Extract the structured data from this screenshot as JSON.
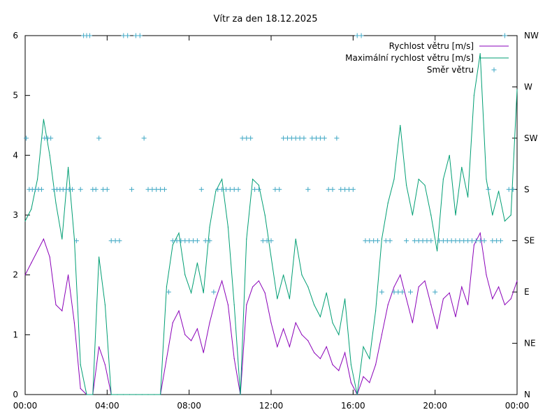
{
  "chart_data": {
    "type": "line",
    "title": "Vítr za den 18.12.2025",
    "x_ticks": [
      {
        "label": "00:00",
        "hour": 0
      },
      {
        "label": "04:00",
        "hour": 4
      },
      {
        "label": "08:00",
        "hour": 8
      },
      {
        "label": "12:00",
        "hour": 12
      },
      {
        "label": "16:00",
        "hour": 16
      },
      {
        "label": "20:00",
        "hour": 20
      },
      {
        "label": "00:00",
        "hour": 24
      }
    ],
    "xlim": [
      0,
      24
    ],
    "ylim": [
      0,
      6
    ],
    "y_ticks": [
      "0",
      "1",
      "2",
      "3",
      "4",
      "5",
      "6"
    ],
    "y2_ticks": [
      "N",
      "NE",
      "E",
      "SE",
      "S",
      "SW",
      "W",
      "NW"
    ],
    "y2lim": [
      0,
      7
    ],
    "legend_position": "top-right",
    "series": [
      {
        "name": "Rychlost větru [m/s]",
        "color": "#8a00b8",
        "style": "line",
        "x": [
          0,
          0.3,
          0.6,
          0.9,
          1.2,
          1.5,
          1.8,
          2.1,
          2.4,
          2.7,
          3.0,
          3.3,
          3.6,
          3.9,
          4.2,
          4.5,
          4.8,
          5.1,
          5.4,
          5.7,
          6.0,
          6.3,
          6.6,
          6.9,
          7.2,
          7.5,
          7.8,
          8.1,
          8.4,
          8.7,
          9.0,
          9.3,
          9.6,
          9.9,
          10.2,
          10.5,
          10.8,
          11.1,
          11.4,
          11.7,
          12.0,
          12.3,
          12.6,
          12.9,
          13.2,
          13.5,
          13.8,
          14.1,
          14.4,
          14.7,
          15.0,
          15.3,
          15.6,
          15.9,
          16.2,
          16.5,
          16.8,
          17.1,
          17.4,
          17.7,
          18.0,
          18.3,
          18.6,
          18.9,
          19.2,
          19.5,
          19.8,
          20.1,
          20.4,
          20.7,
          21.0,
          21.3,
          21.6,
          21.9,
          22.2,
          22.5,
          22.8,
          23.1,
          23.4,
          23.7,
          24.0
        ],
        "values": [
          2.0,
          2.2,
          2.4,
          2.6,
          2.3,
          1.5,
          1.4,
          2.0,
          1.2,
          0.1,
          0.0,
          0.0,
          0.8,
          0.5,
          0.0,
          0.0,
          0.0,
          0.0,
          0.0,
          0.0,
          0.0,
          0.0,
          0.0,
          0.6,
          1.2,
          1.4,
          1.0,
          0.9,
          1.1,
          0.7,
          1.2,
          1.6,
          1.9,
          1.5,
          0.6,
          0.0,
          1.5,
          1.8,
          1.9,
          1.7,
          1.2,
          0.8,
          1.1,
          0.8,
          1.2,
          1.0,
          0.9,
          0.7,
          0.6,
          0.8,
          0.5,
          0.4,
          0.7,
          0.2,
          0.0,
          0.3,
          0.2,
          0.5,
          1.0,
          1.5,
          1.8,
          2.0,
          1.6,
          1.2,
          1.8,
          1.9,
          1.5,
          1.1,
          1.6,
          1.7,
          1.3,
          1.8,
          1.5,
          2.5,
          2.7,
          2.0,
          1.6,
          1.8,
          1.5,
          1.6,
          1.9
        ]
      },
      {
        "name": "Maximální rychlost větru [m/s]",
        "color": "#009e73",
        "style": "line",
        "x": [
          0,
          0.3,
          0.6,
          0.9,
          1.2,
          1.5,
          1.8,
          2.1,
          2.4,
          2.7,
          3.0,
          3.3,
          3.6,
          3.9,
          4.2,
          4.5,
          4.8,
          5.1,
          5.4,
          5.7,
          6.0,
          6.3,
          6.6,
          6.9,
          7.2,
          7.5,
          7.8,
          8.1,
          8.4,
          8.7,
          9.0,
          9.3,
          9.6,
          9.9,
          10.2,
          10.5,
          10.8,
          11.1,
          11.4,
          11.7,
          12.0,
          12.3,
          12.6,
          12.9,
          13.2,
          13.5,
          13.8,
          14.1,
          14.4,
          14.7,
          15.0,
          15.3,
          15.6,
          15.9,
          16.2,
          16.5,
          16.8,
          17.1,
          17.4,
          17.7,
          18.0,
          18.3,
          18.6,
          18.9,
          19.2,
          19.5,
          19.8,
          20.1,
          20.4,
          20.7,
          21.0,
          21.3,
          21.6,
          21.9,
          22.2,
          22.5,
          22.8,
          23.1,
          23.4,
          23.7,
          24.0
        ],
        "values": [
          2.9,
          3.1,
          3.6,
          4.6,
          4.0,
          3.2,
          2.6,
          3.8,
          2.6,
          0.5,
          0.0,
          0.0,
          2.3,
          1.5,
          0.0,
          0.0,
          0.0,
          0.0,
          0.0,
          0.0,
          0.0,
          0.0,
          0.0,
          1.8,
          2.5,
          2.7,
          2.0,
          1.7,
          2.2,
          1.7,
          2.8,
          3.4,
          3.6,
          2.8,
          1.5,
          0.0,
          2.6,
          3.6,
          3.5,
          3.0,
          2.3,
          1.6,
          2.0,
          1.6,
          2.6,
          2.0,
          1.8,
          1.5,
          1.3,
          1.7,
          1.2,
          1.0,
          1.6,
          0.5,
          0.0,
          0.8,
          0.6,
          1.4,
          2.6,
          3.2,
          3.6,
          4.5,
          3.5,
          3.0,
          3.6,
          3.5,
          3.0,
          2.4,
          3.6,
          4.0,
          3.0,
          3.8,
          3.3,
          5.0,
          5.7,
          3.6,
          3.0,
          3.4,
          2.9,
          3.0,
          5.1
        ]
      },
      {
        "name": "Směr větru",
        "color": "#3fa7c4",
        "style": "points",
        "axis": "y2",
        "note": "direction index on y2: 0=N,1=NE,2=E,3=SE,4=S,5=SW,6=W,7=NW",
        "x": [
          0.05,
          0.2,
          0.35,
          0.5,
          0.65,
          0.8,
          0.95,
          1.1,
          1.25,
          1.4,
          1.55,
          1.7,
          1.85,
          2.0,
          2.15,
          2.3,
          2.5,
          2.7,
          2.85,
          3.0,
          3.15,
          3.3,
          3.45,
          3.6,
          3.8,
          4.0,
          4.2,
          4.4,
          4.6,
          4.8,
          5.0,
          5.2,
          5.4,
          5.6,
          5.8,
          6.0,
          6.2,
          6.4,
          6.6,
          6.8,
          7.0,
          7.2,
          7.4,
          7.6,
          7.8,
          8.0,
          8.2,
          8.4,
          8.6,
          8.8,
          9.0,
          9.2,
          9.4,
          9.6,
          9.8,
          10.0,
          10.2,
          10.4,
          10.6,
          10.8,
          11.0,
          11.2,
          11.4,
          11.6,
          11.8,
          12.0,
          12.2,
          12.4,
          12.6,
          12.8,
          13.0,
          13.2,
          13.4,
          13.6,
          13.8,
          14.0,
          14.2,
          14.4,
          14.6,
          14.8,
          15.0,
          15.2,
          15.4,
          15.6,
          15.8,
          16.0,
          16.2,
          16.4,
          16.6,
          16.8,
          17.0,
          17.2,
          17.4,
          17.6,
          17.8,
          18.0,
          18.2,
          18.4,
          18.6,
          18.8,
          19.0,
          19.2,
          19.4,
          19.6,
          19.8,
          20.0,
          20.2,
          20.4,
          20.6,
          20.8,
          21.0,
          21.2,
          21.4,
          21.6,
          21.8,
          22.0,
          22.2,
          22.4,
          22.6,
          22.8,
          23.0,
          23.2,
          23.4,
          23.6,
          23.8
        ],
        "values": [
          5,
          4,
          4,
          4,
          4,
          4,
          5,
          5,
          5,
          4,
          4,
          4,
          4,
          4,
          4,
          4,
          3,
          4,
          7,
          7,
          7,
          4,
          4,
          5,
          4,
          4,
          3,
          3,
          3,
          7,
          7,
          4,
          7,
          7,
          5,
          4,
          4,
          4,
          4,
          4,
          2,
          3,
          3,
          3,
          3,
          3,
          3,
          3,
          4,
          3,
          3,
          2,
          4,
          4,
          4,
          4,
          4,
          4,
          5,
          5,
          5,
          4,
          4,
          3,
          3,
          3,
          4,
          4,
          5,
          5,
          5,
          5,
          5,
          5,
          4,
          5,
          5,
          5,
          5,
          4,
          4,
          5,
          4,
          4,
          4,
          4,
          7,
          7,
          3,
          3,
          3,
          3,
          2,
          3,
          3,
          2,
          2,
          2,
          3,
          2,
          3,
          3,
          3,
          3,
          3,
          2,
          3,
          3,
          3,
          3,
          3,
          3,
          3,
          3,
          3,
          3,
          3,
          3,
          4,
          3,
          3,
          3,
          7,
          4,
          4
        ]
      }
    ]
  }
}
